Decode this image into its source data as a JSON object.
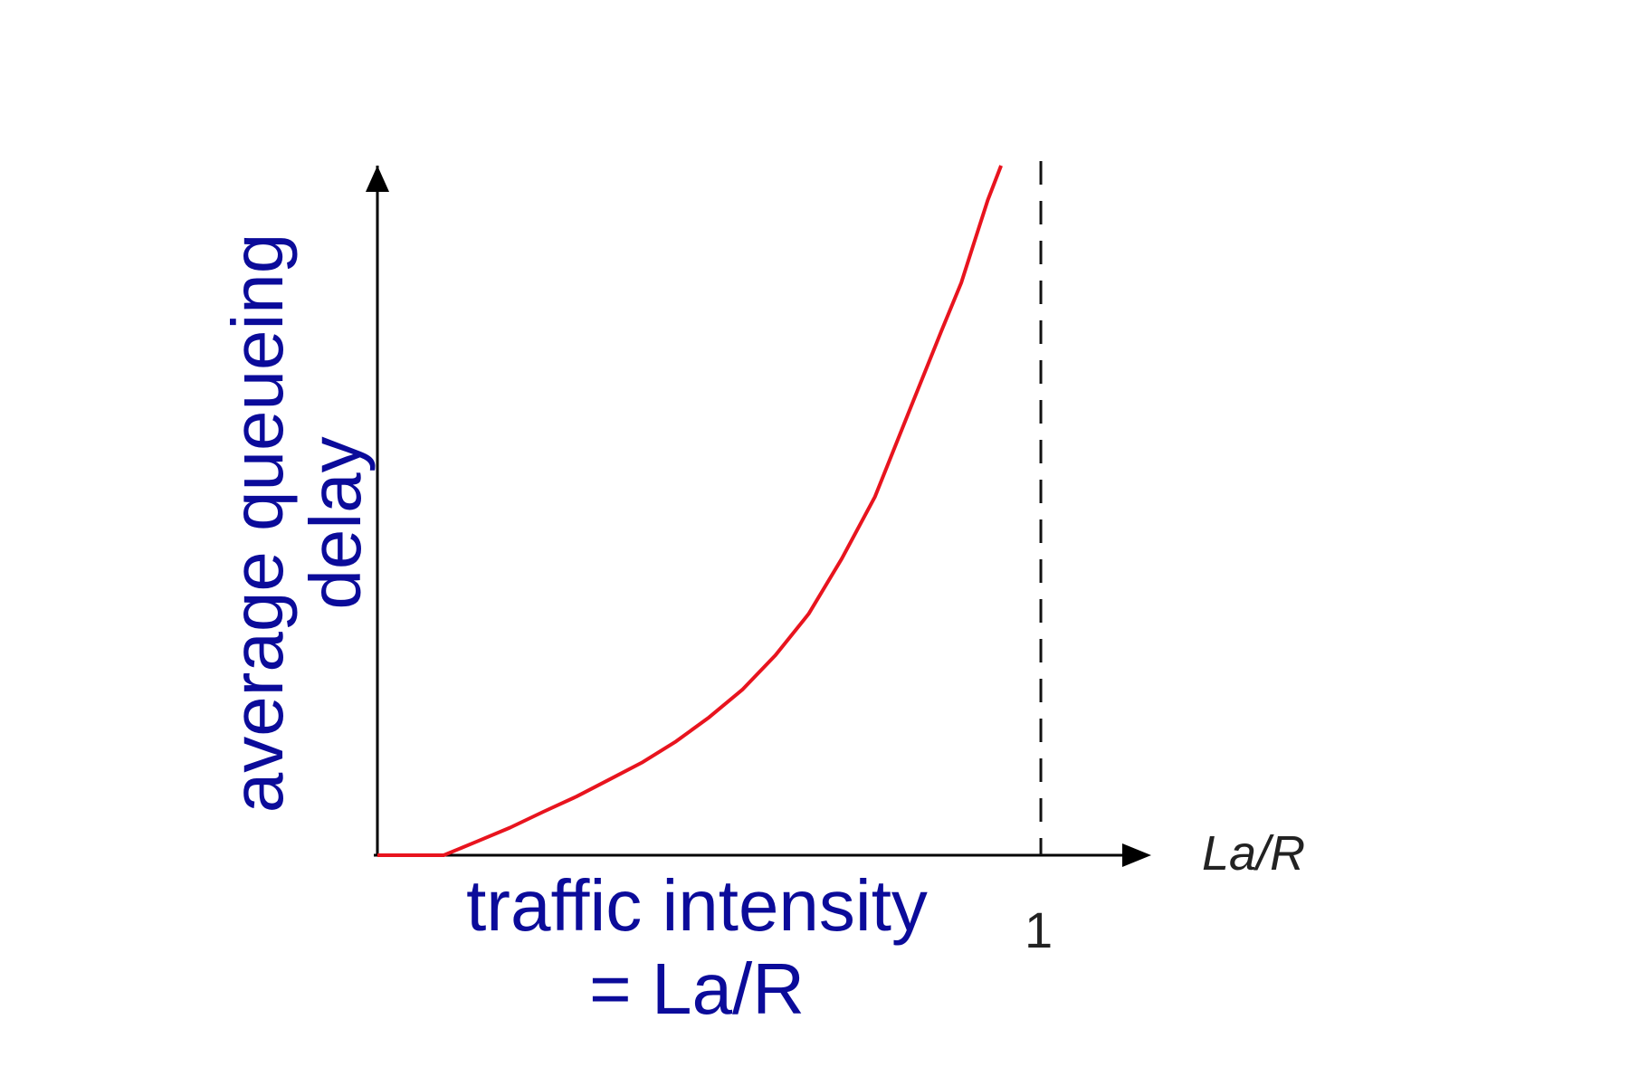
{
  "chart_data": {
    "type": "line",
    "ylabel_lines": [
      "average  queueing",
      "delay"
    ],
    "xlabel_lines": [
      "traffic intensity",
      "= La/R"
    ],
    "x_axis_name": "La/R",
    "x_tick_labels": [
      "1"
    ],
    "x_ticks": [
      1
    ],
    "xlim": [
      0,
      1.12
    ],
    "ylim": [
      0,
      1
    ],
    "asymptote_x": 1,
    "grid": false,
    "legend": "none",
    "series": [
      {
        "x": [
          0,
          0.05,
          0.1,
          0.15,
          0.2,
          0.25,
          0.3,
          0.35,
          0.4,
          0.45,
          0.5,
          0.55,
          0.6,
          0.65,
          0.7,
          0.75,
          0.8,
          0.85,
          0.88,
          0.9,
          0.92,
          0.94
        ],
        "y": [
          0,
          0,
          0,
          0.02,
          0.04,
          0.063,
          0.085,
          0.11,
          0.135,
          0.165,
          0.2,
          0.24,
          0.29,
          0.35,
          0.43,
          0.52,
          0.64,
          0.76,
          0.83,
          0.89,
          0.95,
          1.0
        ],
        "color": "#e8141e"
      }
    ],
    "colors": {
      "label": "#0b0b9a",
      "axis": "#000000",
      "curve": "#e8141e"
    }
  }
}
